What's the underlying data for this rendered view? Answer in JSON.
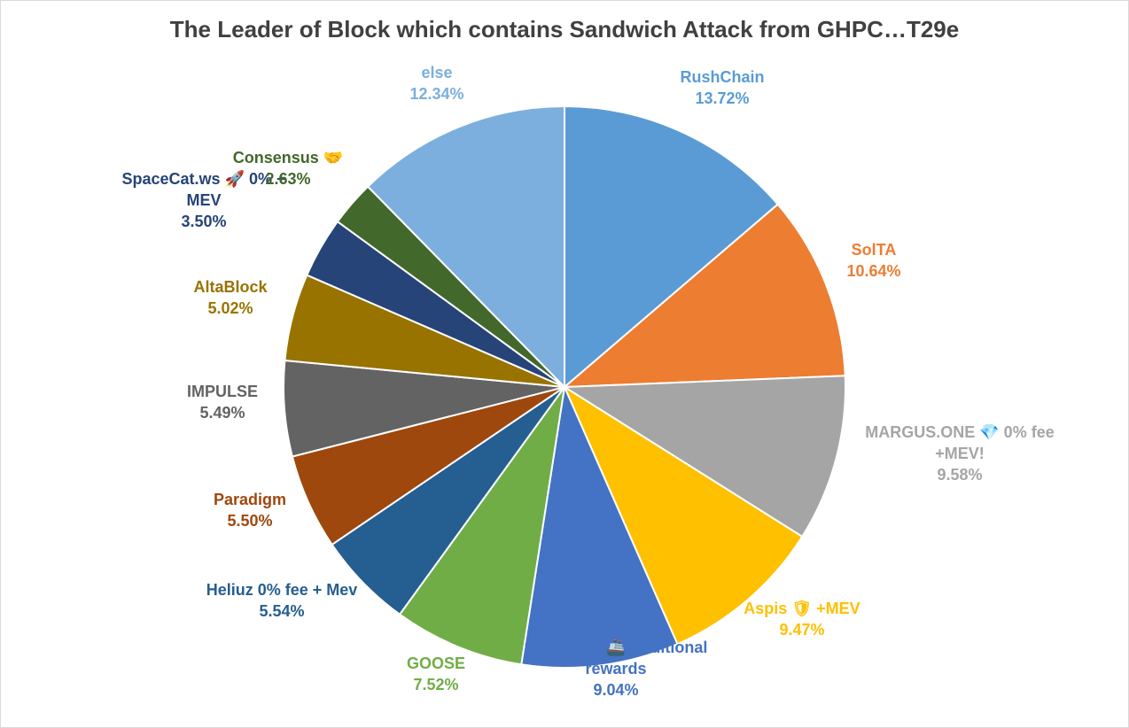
{
  "chart_data": {
    "type": "pie",
    "title": "The Leader of Block which contains Sandwich Attack from GHPC…T29e",
    "slices": [
      {
        "name": "RushChain",
        "lines": [
          "RushChain"
        ],
        "value": 13.72,
        "pct_label": "13.72%",
        "color": "#5b9bd5"
      },
      {
        "name": "SolTA",
        "lines": [
          "SolTA"
        ],
        "value": 10.64,
        "pct_label": "10.64%",
        "color": "#ed7d31"
      },
      {
        "name": "MARGUS.ONE 💎 0% fee +MEV!",
        "lines": [
          "MARGUS.ONE 💎 0% fee",
          "+MEV!"
        ],
        "value": 9.58,
        "pct_label": "9.58%",
        "color": "#a5a5a5"
      },
      {
        "name": "Aspis 🛡 +MEV",
        "lines": [
          "Aspis 🛡 +MEV"
        ],
        "value": 9.47,
        "pct_label": "9.47%",
        "color": "#ffc000"
      },
      {
        "name": "StakeShip 🚢 Additional rewards",
        "lines": [
          "StakeShip 🚢 Additional",
          "rewards"
        ],
        "value": 9.04,
        "pct_label": "9.04%",
        "color": "#4472c4"
      },
      {
        "name": "GOOSE",
        "lines": [
          "GOOSE"
        ],
        "value": 7.52,
        "pct_label": "7.52%",
        "color": "#70ad47"
      },
      {
        "name": "Heliuz 0% fee + Mev",
        "lines": [
          "Heliuz 0% fee + Mev"
        ],
        "value": 5.54,
        "pct_label": "5.54%",
        "color": "#255e91"
      },
      {
        "name": "Paradigm",
        "lines": [
          "Paradigm"
        ],
        "value": 5.5,
        "pct_label": "5.50%",
        "color": "#9e480e"
      },
      {
        "name": "IMPULSE",
        "lines": [
          "IMPULSE"
        ],
        "value": 5.49,
        "pct_label": "5.49%",
        "color": "#636363"
      },
      {
        "name": "AltaBlock",
        "lines": [
          "AltaBlock"
        ],
        "value": 5.02,
        "pct_label": "5.02%",
        "color": "#997300"
      },
      {
        "name": "SpaceCat.ws 🚀 0% + MEV",
        "lines": [
          "SpaceCat.ws 🚀 0% +",
          "MEV"
        ],
        "value": 3.5,
        "pct_label": "3.50%",
        "color": "#264478"
      },
      {
        "name": "Consensus 🤝",
        "lines": [
          "Consensus 🤝"
        ],
        "value": 2.63,
        "pct_label": "2.63%",
        "color": "#43682b"
      },
      {
        "name": "else",
        "lines": [
          "else"
        ],
        "value": 12.34,
        "pct_label": "12.34%",
        "color": "#7cafdd"
      }
    ]
  }
}
